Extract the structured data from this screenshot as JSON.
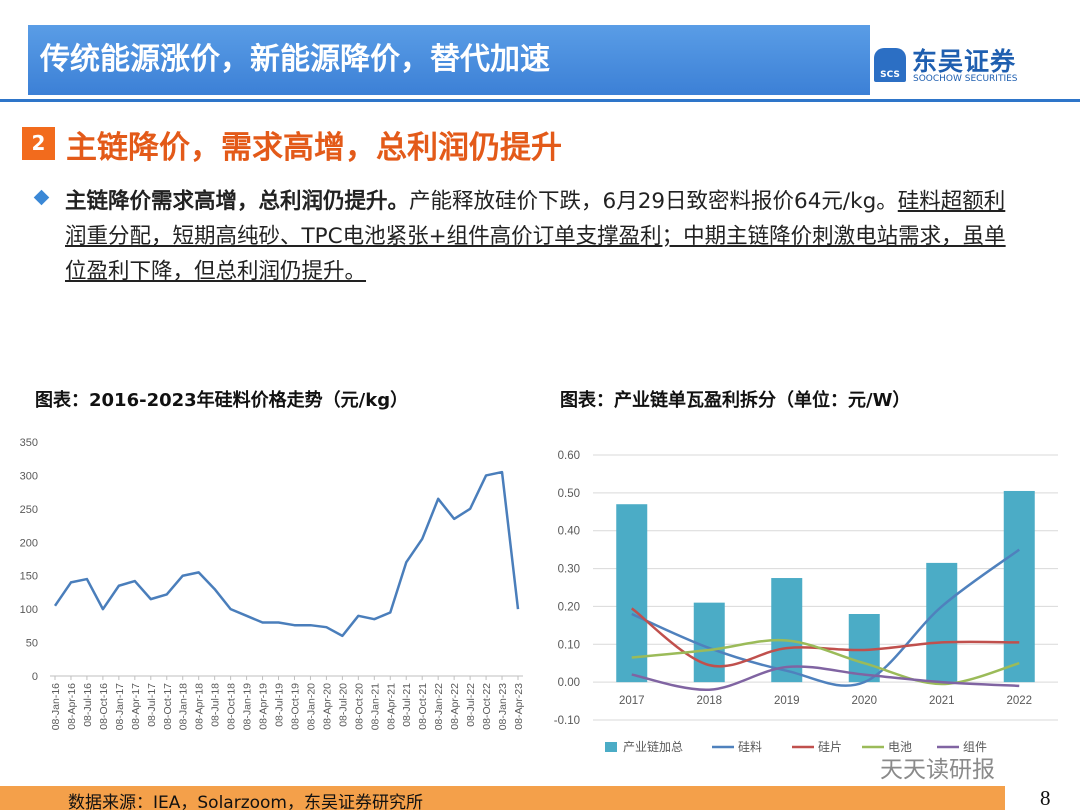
{
  "header": {
    "title": "传统能源涨价，新能源降价，替代加速",
    "logo_badge": "SCS",
    "logo_name": "东吴证券",
    "logo_sub": "SOOCHOW SECURITIES"
  },
  "section": {
    "number": "2",
    "title": "主链降价，需求高增，总利润仍提升"
  },
  "bullet": {
    "bold": "主链降价需求高增，总利润仍提升。",
    "text": "产能释放硅价下跌，6月29日致密料报价64元/kg。",
    "underlined": "硅料超额利润重分配，短期高纯砂、TPC电池紧张+组件高价订单支撑盈利；中期主链降价刺激电站需求，虽单位盈利下降，但总利润仍提升。"
  },
  "chart_data": [
    {
      "type": "line",
      "title": "图表：2016-2023年硅料价格走势（元/kg）",
      "categories": [
        "08-Jan-16",
        "08-Apr-16",
        "08-Jul-16",
        "08-Oct-16",
        "08-Jan-17",
        "08-Apr-17",
        "08-Jul-17",
        "08-Oct-17",
        "08-Jan-18",
        "08-Apr-18",
        "08-Jul-18",
        "08-Oct-18",
        "08-Jan-19",
        "08-Apr-19",
        "08-Jul-19",
        "08-Oct-19",
        "08-Jan-20",
        "08-Apr-20",
        "08-Jul-20",
        "08-Oct-20",
        "08-Jan-21",
        "08-Apr-21",
        "08-Jul-21",
        "08-Oct-21",
        "08-Jan-22",
        "08-Apr-22",
        "08-Jul-22",
        "08-Oct-22",
        "08-Jan-23",
        "08-Apr-23"
      ],
      "values": [
        105,
        140,
        145,
        100,
        135,
        142,
        115,
        122,
        150,
        155,
        130,
        100,
        90,
        80,
        80,
        76,
        76,
        73,
        60,
        90,
        85,
        95,
        170,
        205,
        265,
        235,
        250,
        300,
        305,
        100
      ],
      "color": "#4a7ebb",
      "ylim": [
        0,
        350
      ],
      "yticks": [
        0,
        50,
        100,
        150,
        200,
        250,
        300,
        350
      ],
      "grid": false
    },
    {
      "type": "combo",
      "title": "图表：产业链单瓦盈利拆分（单位：元/W）",
      "categories": [
        "2017",
        "2018",
        "2019",
        "2020",
        "2021",
        "2022"
      ],
      "series": [
        {
          "name": "产业链加总",
          "kind": "bar",
          "color": "#4bacc6",
          "values": [
            0.47,
            0.21,
            0.275,
            0.18,
            0.315,
            0.505
          ]
        },
        {
          "name": "硅料",
          "kind": "line",
          "color": "#4f81bd",
          "values": [
            0.18,
            0.09,
            0.03,
            0.0,
            0.2,
            0.35
          ]
        },
        {
          "name": "硅片",
          "kind": "line",
          "color": "#c0504d",
          "values": [
            0.195,
            0.045,
            0.09,
            0.085,
            0.105,
            0.105
          ]
        },
        {
          "name": "电池",
          "kind": "line",
          "color": "#9bbb59",
          "values": [
            0.065,
            0.085,
            0.11,
            0.05,
            -0.005,
            0.05
          ]
        },
        {
          "name": "组件",
          "kind": "line",
          "color": "#8064a2",
          "values": [
            0.02,
            -0.02,
            0.04,
            0.02,
            0.0,
            -0.01
          ]
        }
      ],
      "ylim": [
        -0.1,
        0.6
      ],
      "yticks": [
        {
          "value": -0.1,
          "label": "-0.10"
        },
        {
          "value": 0,
          "label": "0.00"
        },
        {
          "value": 0.1,
          "label": "0.10"
        },
        {
          "value": 0.2,
          "label": "0.20"
        },
        {
          "value": 0.3,
          "label": "0.30"
        },
        {
          "value": 0.4,
          "label": "0.40"
        },
        {
          "value": 0.5,
          "label": "0.50"
        },
        {
          "value": 0.6,
          "label": "0.60"
        }
      ],
      "grid": true,
      "legend": "bottom"
    }
  ],
  "source": "数据来源：IEA，Solarzoom，东吴证券研究所",
  "page_number": "8",
  "watermark": "天天读研报"
}
